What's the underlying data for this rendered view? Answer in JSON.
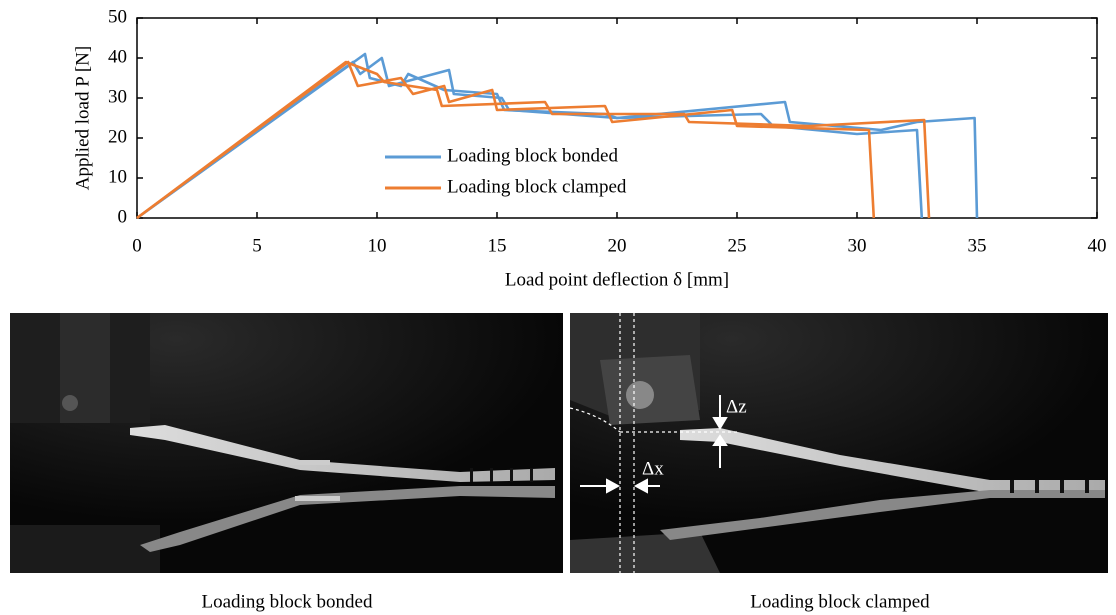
{
  "chart_data": {
    "type": "line",
    "xlabel": "Load point deflection δ [mm]",
    "ylabel": "Applied load P [N]",
    "xlim": [
      0,
      40
    ],
    "xticks": [
      0,
      5,
      10,
      15,
      20,
      25,
      30,
      35,
      40
    ],
    "ylim": [
      0,
      50
    ],
    "yticks": [
      0,
      10,
      20,
      30,
      40,
      50
    ],
    "series": [
      {
        "name": "Loading block bonded",
        "color": "#5b9bd5",
        "runs": [
          {
            "x": [
              0,
              9.5,
              9.7,
              11,
              11.3,
              12.8,
              15,
              15.3,
              19.5,
              20,
              27,
              27.2,
              31,
              32.5,
              34.9,
              35
            ],
            "values": [
              0,
              41,
              35,
              33,
              36,
              32,
              31,
              27,
              26,
              25,
              29,
              24,
              22,
              24,
              25,
              0
            ]
          },
          {
            "x": [
              0,
              9,
              9.3,
              10.2,
              10.5,
              13,
              13.2,
              15.2,
              15.5,
              20,
              26,
              26.5,
              30,
              32.5,
              32.7
            ],
            "values": [
              0,
              39,
              36,
              40,
              33,
              37,
              31,
              30,
              27,
              25,
              26,
              23,
              21,
              22,
              0
            ]
          }
        ]
      },
      {
        "name": "Loading block clamped",
        "color": "#ed7d31",
        "runs": [
          {
            "x": [
              0,
              8.8,
              9.2,
              11,
              11.5,
              12.8,
              13,
              14.8,
              15,
              19.5,
              19.8,
              24.8,
              25,
              30.5,
              30.7
            ],
            "values": [
              0,
              39,
              33,
              35,
              31,
              33,
              29,
              32,
              27,
              28,
              24,
              27,
              23,
              22,
              0
            ]
          },
          {
            "x": [
              0,
              8.7,
              10,
              10.3,
              12.5,
              12.7,
              17,
              17.3,
              22.8,
              23,
              28,
              32.8,
              33
            ],
            "values": [
              0,
              39,
              36,
              34,
              32,
              28,
              29,
              26,
              26,
              24,
              23,
              24.5,
              0
            ]
          }
        ]
      }
    ]
  },
  "figure": {
    "panels": [
      {
        "caption": "Loading block bonded"
      },
      {
        "caption": "Loading block clamped",
        "annotations": [
          "Δz",
          "Δx"
        ]
      }
    ]
  }
}
